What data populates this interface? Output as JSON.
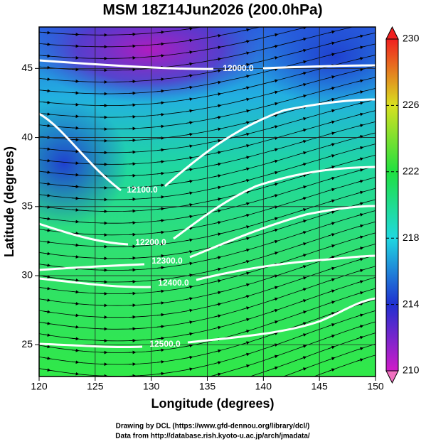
{
  "chart_data": {
    "type": "map",
    "title": "MSM 18Z14Jun2026 (200.0hPa)",
    "xlabel": "Longitude (degrees)",
    "ylabel": "Latitude  (degrees)",
    "xlim": [
      120,
      150
    ],
    "ylim": [
      22.7,
      48.0
    ],
    "xticks": [
      120,
      125,
      130,
      135,
      140,
      145,
      150
    ],
    "yticks": [
      25,
      30,
      35,
      40,
      45
    ],
    "grid": true,
    "colorbar": {
      "lim": [
        210,
        230
      ],
      "ticks": [
        210,
        214,
        218,
        222,
        226,
        230
      ],
      "colors": [
        "#d01cc8",
        "#2030d0",
        "#20d8e0",
        "#20e040",
        "#d8e020",
        "#f02020"
      ]
    },
    "contours": [
      {
        "value": 12000,
        "label": "12000.0"
      },
      {
        "value": 12100,
        "label": "12100.0"
      },
      {
        "value": 12200,
        "label": "12200.0"
      },
      {
        "value": 12300,
        "label": "12300.0"
      },
      {
        "value": 12400,
        "label": "12400.0"
      },
      {
        "value": 12500,
        "label": "12500.0"
      }
    ],
    "credits": [
      "Drawing by DCL (https://www.gfd-dennou.org/library/dcl/)",
      "Data from http://database.rish.kyoto-u.ac.jp/arch/jmadata/"
    ]
  }
}
